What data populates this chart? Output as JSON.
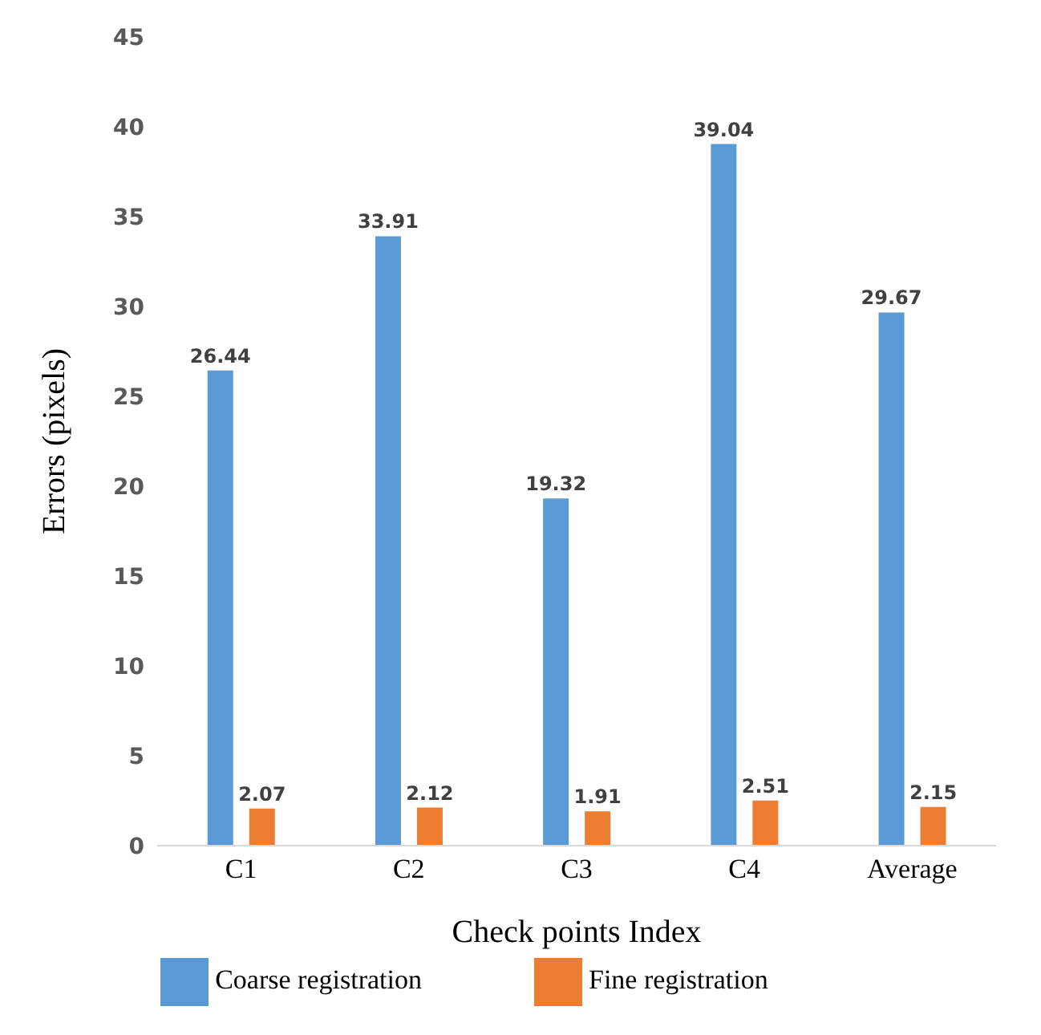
{
  "chart_data": {
    "type": "bar",
    "xlabel": "Check points Index",
    "ylabel": "Errors (pixels)",
    "categories": [
      "C1",
      "C2",
      "C3",
      "C4",
      "Average"
    ],
    "series": [
      {
        "name": "Coarse registration",
        "color": "#5b9bd5",
        "values": [
          26.44,
          33.91,
          19.32,
          39.04,
          29.67
        ]
      },
      {
        "name": "Fine registration",
        "color": "#ed7d31",
        "values": [
          2.07,
          2.12,
          1.91,
          2.51,
          2.15
        ]
      }
    ],
    "ylim": [
      0,
      45
    ],
    "yticks": [
      0,
      5,
      10,
      15,
      20,
      25,
      30,
      35,
      40,
      45
    ],
    "grid": false,
    "legend": "bottom",
    "data_labels": true
  }
}
